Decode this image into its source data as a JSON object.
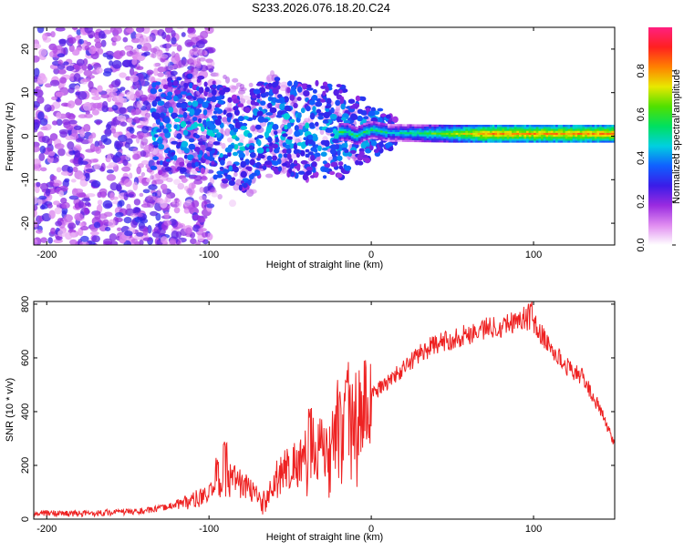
{
  "title": "S233.2026.076.18.20.C24",
  "chart_data": [
    {
      "type": "heatmap",
      "title": "S233.2026.076.18.20.C24",
      "xlabel": "Height of straight line (km)",
      "ylabel": "Frequency (Hz)",
      "xlim": [
        -208,
        150
      ],
      "ylim": [
        -25,
        25
      ],
      "xticks": [
        -200,
        -100,
        0,
        100
      ],
      "yticks": [
        -20,
        -10,
        0,
        10,
        20
      ],
      "colorbar": {
        "label": "Normalized spectral amplitude",
        "range": [
          0,
          1
        ],
        "ticks": [
          "0.0",
          "0.2",
          "0.4",
          "0.6",
          "0.8"
        ],
        "tick_values": [
          0,
          0.2,
          0.4,
          0.6,
          0.8
        ],
        "colors": [
          "#ffffff",
          "#e08cf0",
          "#9a2be0",
          "#3a1ce8",
          "#1060ff",
          "#00d0e0",
          "#00e060",
          "#50e000",
          "#e8e800",
          "#ff8000",
          "#ff2020",
          "#ff2080"
        ]
      },
      "ridge": [
        {
          "x": -200,
          "f": 1
        },
        {
          "x": -130,
          "f": 2
        },
        {
          "x": -110,
          "f": 3
        },
        {
          "x": -100,
          "f": 2
        },
        {
          "x": -90,
          "f": 0
        },
        {
          "x": -80,
          "f": -2
        },
        {
          "x": -70,
          "f": 1
        },
        {
          "x": -60,
          "f": 3
        },
        {
          "x": -50,
          "f": 2
        },
        {
          "x": -40,
          "f": 1
        },
        {
          "x": -30,
          "f": 1.5
        },
        {
          "x": -20,
          "f": 1
        },
        {
          "x": -15,
          "f": 1
        },
        {
          "x": -10,
          "f": 0
        },
        {
          "x": -5,
          "f": 1
        },
        {
          "x": 0,
          "f": 1.5
        },
        {
          "x": 10,
          "f": 0.8
        },
        {
          "x": 50,
          "f": 0.6
        },
        {
          "x": 100,
          "f": 0.6
        },
        {
          "x": 150,
          "f": 0.6
        }
      ]
    },
    {
      "type": "line",
      "xlabel": "Height of straight line (km)",
      "ylabel": "SNR (10 * v/v)",
      "xlim": [
        -208,
        150
      ],
      "ylim": [
        0,
        810
      ],
      "xticks": [
        -200,
        -100,
        0,
        100
      ],
      "yticks": [
        0,
        200,
        400,
        600,
        800
      ],
      "series": [
        {
          "name": "SNR",
          "color": "#ee2222",
          "x": [
            -208,
            -200,
            -180,
            -160,
            -140,
            -130,
            -120,
            -110,
            -100,
            -95,
            -90,
            -85,
            -80,
            -75,
            -70,
            -65,
            -60,
            -55,
            -50,
            -45,
            -40,
            -35,
            -30,
            -25,
            -20,
            -15,
            -10,
            -5,
            0,
            10,
            20,
            30,
            40,
            50,
            60,
            70,
            80,
            90,
            95,
            100,
            110,
            120,
            130,
            140,
            150
          ],
          "values": [
            20,
            22,
            20,
            25,
            30,
            40,
            55,
            70,
            90,
            110,
            130,
            160,
            130,
            110,
            90,
            70,
            140,
            180,
            200,
            210,
            240,
            270,
            280,
            300,
            320,
            340,
            380,
            420,
            460,
            510,
            560,
            620,
            650,
            670,
            690,
            710,
            720,
            740,
            750,
            730,
            640,
            570,
            530,
            420,
            280
          ]
        }
      ],
      "spikes": [
        {
          "x": -90,
          "y": 300
        },
        {
          "x": -95,
          "y": 235
        },
        {
          "x": -15,
          "y": 610
        },
        {
          "x": -20,
          "y": 520
        },
        {
          "x": -38,
          "y": 420
        },
        {
          "x": 98,
          "y": 815
        }
      ]
    }
  ]
}
